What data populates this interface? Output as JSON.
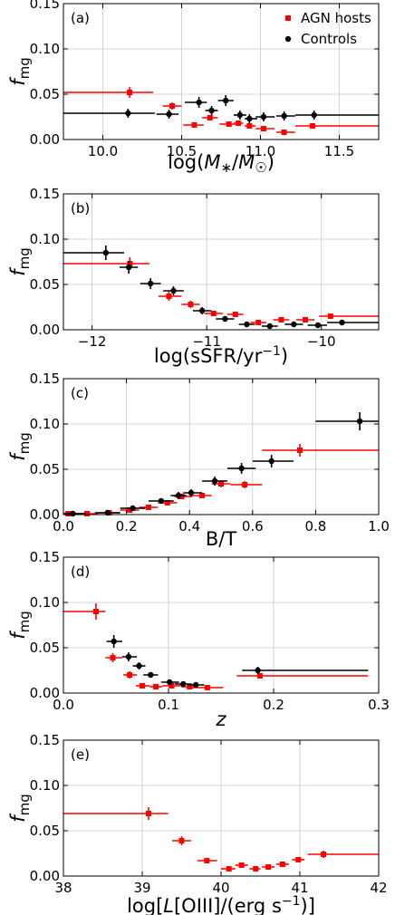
{
  "figure": {
    "ylabel_main": "f",
    "ylabel_sub": "mg",
    "legend": [
      {
        "label": "AGN hosts",
        "color": "#ff0000",
        "marker": "square"
      },
      {
        "label": "Controls",
        "color": "#000000",
        "marker": "circle"
      }
    ]
  },
  "chart_data": [
    {
      "type": "scatter",
      "panel": "(a)",
      "xlabel_text": "log(M*/M☉)",
      "xlim": [
        9.75,
        11.75
      ],
      "ylim": [
        0,
        0.15
      ],
      "xticks": [
        10.0,
        10.5,
        11.0,
        11.5
      ],
      "xtick_labels": [
        "10.0",
        "10.5",
        "11.0",
        "11.5"
      ],
      "yticks": [
        0,
        0.05,
        0.1,
        0.15
      ],
      "ytick_labels": [
        "0.00",
        "0.05",
        "0.10",
        "0.15"
      ],
      "legend": true,
      "grid": true,
      "series": [
        {
          "name": "AGN hosts",
          "color": "#ff0000",
          "marker": "square",
          "points": [
            {
              "x": 10.17,
              "xlo": 9.75,
              "xhi": 10.32,
              "y": 0.052,
              "yerr": 0.006
            },
            {
              "x": 10.44,
              "xlo": 10.38,
              "xhi": 10.5,
              "y": 0.037,
              "yerr": 0.004
            },
            {
              "x": 10.58,
              "xlo": 10.51,
              "xhi": 10.64,
              "y": 0.016,
              "yerr": 0.003
            },
            {
              "x": 10.68,
              "xlo": 10.63,
              "xhi": 10.73,
              "y": 0.024,
              "yerr": 0.003
            },
            {
              "x": 10.8,
              "xlo": 10.74,
              "xhi": 10.84,
              "y": 0.017,
              "yerr": 0.003
            },
            {
              "x": 10.86,
              "xlo": 10.83,
              "xhi": 10.89,
              "y": 0.018,
              "yerr": 0.003
            },
            {
              "x": 10.93,
              "xlo": 10.9,
              "xhi": 10.97,
              "y": 0.015,
              "yerr": 0.003
            },
            {
              "x": 11.02,
              "xlo": 10.97,
              "xhi": 11.09,
              "y": 0.012,
              "yerr": 0.003
            },
            {
              "x": 11.15,
              "xlo": 11.1,
              "xhi": 11.22,
              "y": 0.008,
              "yerr": 0.003
            },
            {
              "x": 11.33,
              "xlo": 11.22,
              "xhi": 11.75,
              "y": 0.015,
              "yerr": 0.003
            }
          ]
        },
        {
          "name": "Controls",
          "color": "#000000",
          "marker": "circle",
          "points": [
            {
              "x": 10.16,
              "xlo": 9.75,
              "xhi": 10.33,
              "y": 0.029,
              "yerr": 0.005
            },
            {
              "x": 10.42,
              "xlo": 10.34,
              "xhi": 10.48,
              "y": 0.028,
              "yerr": 0.005
            },
            {
              "x": 10.61,
              "xlo": 10.52,
              "xhi": 10.66,
              "y": 0.041,
              "yerr": 0.006
            },
            {
              "x": 10.69,
              "xlo": 10.65,
              "xhi": 10.73,
              "y": 0.032,
              "yerr": 0.005
            },
            {
              "x": 10.78,
              "xlo": 10.73,
              "xhi": 10.83,
              "y": 0.043,
              "yerr": 0.006
            },
            {
              "x": 10.87,
              "xlo": 10.83,
              "xhi": 10.91,
              "y": 0.027,
              "yerr": 0.005
            },
            {
              "x": 10.93,
              "xlo": 10.9,
              "xhi": 10.98,
              "y": 0.023,
              "yerr": 0.005
            },
            {
              "x": 11.02,
              "xlo": 10.97,
              "xhi": 11.09,
              "y": 0.025,
              "yerr": 0.005
            },
            {
              "x": 11.15,
              "xlo": 11.1,
              "xhi": 11.22,
              "y": 0.026,
              "yerr": 0.005
            },
            {
              "x": 11.34,
              "xlo": 11.22,
              "xhi": 11.75,
              "y": 0.027,
              "yerr": 0.005
            }
          ]
        }
      ]
    },
    {
      "type": "scatter",
      "panel": "(b)",
      "xlabel_text": "log(sSFR/yr⁻¹)",
      "xlim": [
        -12.25,
        -9.5
      ],
      "ylim": [
        0,
        0.15
      ],
      "xticks": [
        -12,
        -11,
        -10
      ],
      "xtick_labels": [
        "−12",
        "−11",
        "−10"
      ],
      "yticks": [
        0,
        0.05,
        0.1,
        0.15
      ],
      "ytick_labels": [
        "0.00",
        "0.05",
        "0.10",
        "0.15"
      ],
      "legend": false,
      "grid": true,
      "series": [
        {
          "name": "AGN hosts",
          "color": "#ff0000",
          "marker": "square",
          "points": [
            {
              "x": -11.67,
              "xlo": -12.25,
              "xhi": -11.5,
              "y": 0.073,
              "yerr": 0.007
            },
            {
              "x": -11.33,
              "xlo": -11.42,
              "xhi": -11.22,
              "y": 0.037,
              "yerr": 0.005
            },
            {
              "x": -11.14,
              "xlo": -11.22,
              "xhi": -11.06,
              "y": 0.028,
              "yerr": 0.004
            },
            {
              "x": -10.94,
              "xlo": -11.02,
              "xhi": -10.86,
              "y": 0.018,
              "yerr": 0.003
            },
            {
              "x": -10.75,
              "xlo": -10.82,
              "xhi": -10.68,
              "y": 0.017,
              "yerr": 0.003
            },
            {
              "x": -10.55,
              "xlo": -10.62,
              "xhi": -10.48,
              "y": 0.008,
              "yerr": 0.003
            },
            {
              "x": -10.35,
              "xlo": -10.42,
              "xhi": -10.28,
              "y": 0.011,
              "yerr": 0.003
            },
            {
              "x": -10.14,
              "xlo": -10.22,
              "xhi": -10.06,
              "y": 0.011,
              "yerr": 0.003
            },
            {
              "x": -9.92,
              "xlo": -10.02,
              "xhi": -9.5,
              "y": 0.015,
              "yerr": 0.003
            }
          ]
        },
        {
          "name": "Controls",
          "color": "#000000",
          "marker": "circle",
          "points": [
            {
              "x": -11.88,
              "xlo": -12.25,
              "xhi": -11.72,
              "y": 0.085,
              "yerr": 0.008
            },
            {
              "x": -11.68,
              "xlo": -11.76,
              "xhi": -11.6,
              "y": 0.069,
              "yerr": 0.007
            },
            {
              "x": -11.49,
              "xlo": -11.58,
              "xhi": -11.4,
              "y": 0.051,
              "yerr": 0.006
            },
            {
              "x": -11.29,
              "xlo": -11.38,
              "xhi": -11.2,
              "y": 0.043,
              "yerr": 0.005
            },
            {
              "x": -11.04,
              "xlo": -11.12,
              "xhi": -10.96,
              "y": 0.021,
              "yerr": 0.004
            },
            {
              "x": -10.84,
              "xlo": -10.92,
              "xhi": -10.76,
              "y": 0.012,
              "yerr": 0.003
            },
            {
              "x": -10.65,
              "xlo": -10.72,
              "xhi": -10.58,
              "y": 0.006,
              "yerr": 0.002
            },
            {
              "x": -10.45,
              "xlo": -10.52,
              "xhi": -10.38,
              "y": 0.004,
              "yerr": 0.002
            },
            {
              "x": -10.24,
              "xlo": -10.32,
              "xhi": -10.16,
              "y": 0.006,
              "yerr": 0.002
            },
            {
              "x": -10.03,
              "xlo": -10.12,
              "xhi": -9.95,
              "y": 0.005,
              "yerr": 0.002
            },
            {
              "x": -9.82,
              "xlo": -9.95,
              "xhi": -9.5,
              "y": 0.008,
              "yerr": 0.003
            }
          ]
        }
      ]
    },
    {
      "type": "scatter",
      "panel": "(c)",
      "xlabel_text": "B/T",
      "xlim": [
        0,
        1
      ],
      "ylim": [
        0,
        0.15
      ],
      "xticks": [
        0,
        0.2,
        0.4,
        0.6,
        0.8,
        1.0
      ],
      "xtick_labels": [
        "0.0",
        "0.2",
        "0.4",
        "0.6",
        "0.8",
        "1.0"
      ],
      "yticks": [
        0,
        0.05,
        0.1,
        0.15
      ],
      "ytick_labels": [
        "0.00",
        "0.05",
        "0.10",
        "0.15"
      ],
      "legend": false,
      "grid": true,
      "series": [
        {
          "name": "AGN hosts",
          "color": "#ff0000",
          "marker": "square",
          "points": [
            {
              "x": 0.015,
              "xlo": 0.0,
              "xhi": 0.04,
              "y": 0.001,
              "yerr": 0.001
            },
            {
              "x": 0.075,
              "xlo": 0.04,
              "xhi": 0.11,
              "y": 0.001,
              "yerr": 0.001
            },
            {
              "x": 0.145,
              "xlo": 0.11,
              "xhi": 0.18,
              "y": 0.002,
              "yerr": 0.001
            },
            {
              "x": 0.21,
              "xlo": 0.18,
              "xhi": 0.24,
              "y": 0.005,
              "yerr": 0.001
            },
            {
              "x": 0.27,
              "xlo": 0.24,
              "xhi": 0.3,
              "y": 0.008,
              "yerr": 0.002
            },
            {
              "x": 0.33,
              "xlo": 0.3,
              "xhi": 0.36,
              "y": 0.013,
              "yerr": 0.002
            },
            {
              "x": 0.375,
              "xlo": 0.35,
              "xhi": 0.41,
              "y": 0.02,
              "yerr": 0.003
            },
            {
              "x": 0.44,
              "xlo": 0.41,
              "xhi": 0.47,
              "y": 0.021,
              "yerr": 0.003
            },
            {
              "x": 0.5,
              "xlo": 0.47,
              "xhi": 0.53,
              "y": 0.034,
              "yerr": 0.004
            },
            {
              "x": 0.575,
              "xlo": 0.53,
              "xhi": 0.63,
              "y": 0.033,
              "yerr": 0.004
            },
            {
              "x": 0.75,
              "xlo": 0.63,
              "xhi": 1.0,
              "y": 0.071,
              "yerr": 0.007
            }
          ]
        },
        {
          "name": "Controls",
          "color": "#000000",
          "marker": "circle",
          "points": [
            {
              "x": 0.03,
              "xlo": 0.0,
              "xhi": 0.07,
              "y": 0.001,
              "yerr": 0.001
            },
            {
              "x": 0.14,
              "xlo": 0.1,
              "xhi": 0.18,
              "y": 0.002,
              "yerr": 0.001
            },
            {
              "x": 0.22,
              "xlo": 0.18,
              "xhi": 0.26,
              "y": 0.007,
              "yerr": 0.002
            },
            {
              "x": 0.31,
              "xlo": 0.27,
              "xhi": 0.35,
              "y": 0.015,
              "yerr": 0.003
            },
            {
              "x": 0.365,
              "xlo": 0.34,
              "xhi": 0.39,
              "y": 0.021,
              "yerr": 0.004
            },
            {
              "x": 0.405,
              "xlo": 0.38,
              "xhi": 0.44,
              "y": 0.024,
              "yerr": 0.004
            },
            {
              "x": 0.48,
              "xlo": 0.44,
              "xhi": 0.52,
              "y": 0.037,
              "yerr": 0.005
            },
            {
              "x": 0.565,
              "xlo": 0.52,
              "xhi": 0.61,
              "y": 0.051,
              "yerr": 0.006
            },
            {
              "x": 0.66,
              "xlo": 0.6,
              "xhi": 0.73,
              "y": 0.059,
              "yerr": 0.007
            },
            {
              "x": 0.94,
              "xlo": 0.8,
              "xhi": 1.0,
              "y": 0.103,
              "yerr": 0.01
            }
          ]
        }
      ]
    },
    {
      "type": "scatter",
      "panel": "(d)",
      "xlabel_text": "z",
      "xlim": [
        0,
        0.3
      ],
      "ylim": [
        0,
        0.15
      ],
      "xticks": [
        0,
        0.1,
        0.2,
        0.3
      ],
      "xtick_labels": [
        "0.0",
        "0.1",
        "0.2",
        "0.3"
      ],
      "yticks": [
        0,
        0.05,
        0.1,
        0.15
      ],
      "ytick_labels": [
        "0.00",
        "0.05",
        "0.10",
        "0.15"
      ],
      "legend": false,
      "grid": true,
      "series": [
        {
          "name": "AGN hosts",
          "color": "#ff0000",
          "marker": "square",
          "points": [
            {
              "x": 0.031,
              "xlo": 0.0,
              "xhi": 0.04,
              "y": 0.09,
              "yerr": 0.009
            },
            {
              "x": 0.047,
              "xlo": 0.04,
              "xhi": 0.056,
              "y": 0.039,
              "yerr": 0.005
            },
            {
              "x": 0.063,
              "xlo": 0.057,
              "xhi": 0.07,
              "y": 0.02,
              "yerr": 0.004
            },
            {
              "x": 0.075,
              "xlo": 0.069,
              "xhi": 0.082,
              "y": 0.008,
              "yerr": 0.002
            },
            {
              "x": 0.088,
              "xlo": 0.082,
              "xhi": 0.094,
              "y": 0.007,
              "yerr": 0.002
            },
            {
              "x": 0.103,
              "xlo": 0.094,
              "xhi": 0.112,
              "y": 0.008,
              "yerr": 0.002
            },
            {
              "x": 0.12,
              "xlo": 0.112,
              "xhi": 0.128,
              "y": 0.007,
              "yerr": 0.002
            },
            {
              "x": 0.137,
              "xlo": 0.122,
              "xhi": 0.152,
              "y": 0.006,
              "yerr": 0.002
            },
            {
              "x": 0.187,
              "xlo": 0.165,
              "xhi": 0.29,
              "y": 0.019,
              "yerr": 0.003
            }
          ]
        },
        {
          "name": "Controls",
          "color": "#000000",
          "marker": "circle",
          "points": [
            {
              "x": 0.048,
              "xlo": 0.041,
              "xhi": 0.056,
              "y": 0.057,
              "yerr": 0.007
            },
            {
              "x": 0.062,
              "xlo": 0.056,
              "xhi": 0.07,
              "y": 0.04,
              "yerr": 0.005
            },
            {
              "x": 0.072,
              "xlo": 0.066,
              "xhi": 0.078,
              "y": 0.03,
              "yerr": 0.004
            },
            {
              "x": 0.083,
              "xlo": 0.076,
              "xhi": 0.09,
              "y": 0.02,
              "yerr": 0.003
            },
            {
              "x": 0.101,
              "xlo": 0.093,
              "xhi": 0.11,
              "y": 0.012,
              "yerr": 0.003
            },
            {
              "x": 0.114,
              "xlo": 0.106,
              "xhi": 0.122,
              "y": 0.01,
              "yerr": 0.003
            },
            {
              "x": 0.126,
              "xlo": 0.118,
              "xhi": 0.134,
              "y": 0.009,
              "yerr": 0.002
            },
            {
              "x": 0.185,
              "xlo": 0.17,
              "xhi": 0.29,
              "y": 0.025,
              "yerr": 0.004
            }
          ]
        }
      ]
    },
    {
      "type": "scatter",
      "panel": "(e)",
      "xlabel_text": "log[L[OIII]/(erg s⁻¹)]",
      "xlim": [
        38,
        42
      ],
      "ylim": [
        0,
        0.15
      ],
      "xticks": [
        38,
        39,
        40,
        41,
        42
      ],
      "xtick_labels": [
        "38",
        "39",
        "40",
        "41",
        "42"
      ],
      "yticks": [
        0,
        0.05,
        0.1,
        0.15
      ],
      "ytick_labels": [
        "0.00",
        "0.05",
        "0.10",
        "0.15"
      ],
      "legend": false,
      "grid": true,
      "series": [
        {
          "name": "AGN hosts",
          "color": "#ff0000",
          "marker": "square",
          "points": [
            {
              "x": 39.08,
              "xlo": 38.0,
              "xhi": 39.33,
              "y": 0.069,
              "yerr": 0.007
            },
            {
              "x": 39.5,
              "xlo": 39.38,
              "xhi": 39.62,
              "y": 0.039,
              "yerr": 0.005
            },
            {
              "x": 39.82,
              "xlo": 39.7,
              "xhi": 39.95,
              "y": 0.017,
              "yerr": 0.003
            },
            {
              "x": 40.1,
              "xlo": 40.0,
              "xhi": 40.18,
              "y": 0.008,
              "yerr": 0.002
            },
            {
              "x": 40.26,
              "xlo": 40.18,
              "xhi": 40.34,
              "y": 0.012,
              "yerr": 0.003
            },
            {
              "x": 40.44,
              "xlo": 40.36,
              "xhi": 40.5,
              "y": 0.008,
              "yerr": 0.002
            },
            {
              "x": 40.6,
              "xlo": 40.52,
              "xhi": 40.68,
              "y": 0.01,
              "yerr": 0.003
            },
            {
              "x": 40.78,
              "xlo": 40.7,
              "xhi": 40.86,
              "y": 0.013,
              "yerr": 0.003
            },
            {
              "x": 40.98,
              "xlo": 40.9,
              "xhi": 41.06,
              "y": 0.018,
              "yerr": 0.003
            },
            {
              "x": 41.3,
              "xlo": 41.1,
              "xhi": 42.0,
              "y": 0.024,
              "yerr": 0.004
            }
          ]
        }
      ]
    }
  ]
}
